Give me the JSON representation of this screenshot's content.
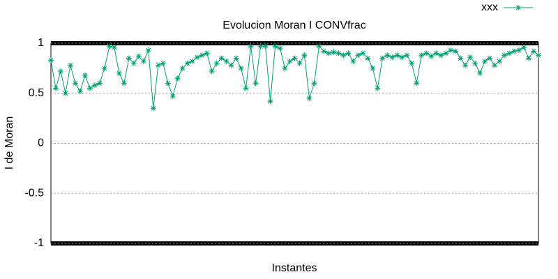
{
  "chart_data": {
    "type": "line",
    "title": "Evolucion Moran I CONVfrac",
    "xlabel": "Instantes",
    "ylabel": "I de Moran",
    "x": [
      0,
      1,
      2,
      3,
      4,
      5,
      6,
      7,
      8,
      9,
      10,
      11,
      12,
      13,
      14,
      15,
      16,
      17,
      18,
      19,
      20,
      21,
      22,
      23,
      24,
      25,
      26,
      27,
      28,
      29,
      30,
      31,
      32,
      33,
      34,
      35,
      36,
      37,
      38,
      39,
      40,
      41,
      42,
      43,
      44,
      45,
      46,
      47,
      48,
      49,
      50,
      51,
      52,
      53,
      54,
      55,
      56,
      57,
      58,
      59,
      60,
      61,
      62,
      63,
      64,
      65,
      66,
      67,
      68,
      69,
      70,
      71,
      72,
      73,
      74,
      75,
      76,
      77,
      78,
      79,
      80,
      81,
      82,
      83,
      84,
      85,
      86,
      87,
      88,
      89,
      90,
      91,
      92,
      93,
      94,
      95,
      96,
      97,
      98,
      99,
      100
    ],
    "series": [
      {
        "name": "xxx",
        "color": "#009e73",
        "values": [
          0.83,
          0.55,
          0.72,
          0.5,
          0.78,
          0.6,
          0.52,
          0.68,
          0.55,
          0.58,
          0.6,
          0.75,
          0.97,
          0.96,
          0.7,
          0.6,
          0.85,
          0.8,
          0.87,
          0.82,
          0.93,
          0.35,
          0.78,
          0.8,
          0.6,
          0.47,
          0.65,
          0.75,
          0.8,
          0.82,
          0.86,
          0.88,
          0.9,
          0.72,
          0.8,
          0.85,
          0.82,
          0.78,
          0.85,
          0.75,
          0.55,
          0.97,
          0.6,
          0.97,
          0.97,
          0.42,
          0.97,
          0.95,
          0.75,
          0.82,
          0.85,
          0.8,
          0.88,
          0.45,
          0.6,
          0.97,
          0.92,
          0.9,
          0.91,
          0.9,
          0.88,
          0.9,
          0.82,
          0.88,
          0.9,
          0.85,
          0.75,
          0.55,
          0.85,
          0.88,
          0.86,
          0.88,
          0.86,
          0.88,
          0.8,
          0.6,
          0.88,
          0.9,
          0.87,
          0.9,
          0.88,
          0.9,
          0.93,
          0.92,
          0.85,
          0.78,
          0.86,
          0.8,
          0.7,
          0.82,
          0.85,
          0.78,
          0.82,
          0.88,
          0.9,
          0.92,
          0.93,
          0.96,
          0.85,
          0.92,
          0.88
        ]
      }
    ],
    "xlim": [
      0,
      100
    ],
    "ylim": [
      -1,
      1
    ],
    "yticks": [
      -1,
      -0.5,
      0,
      0.5,
      1
    ],
    "grid": true
  }
}
